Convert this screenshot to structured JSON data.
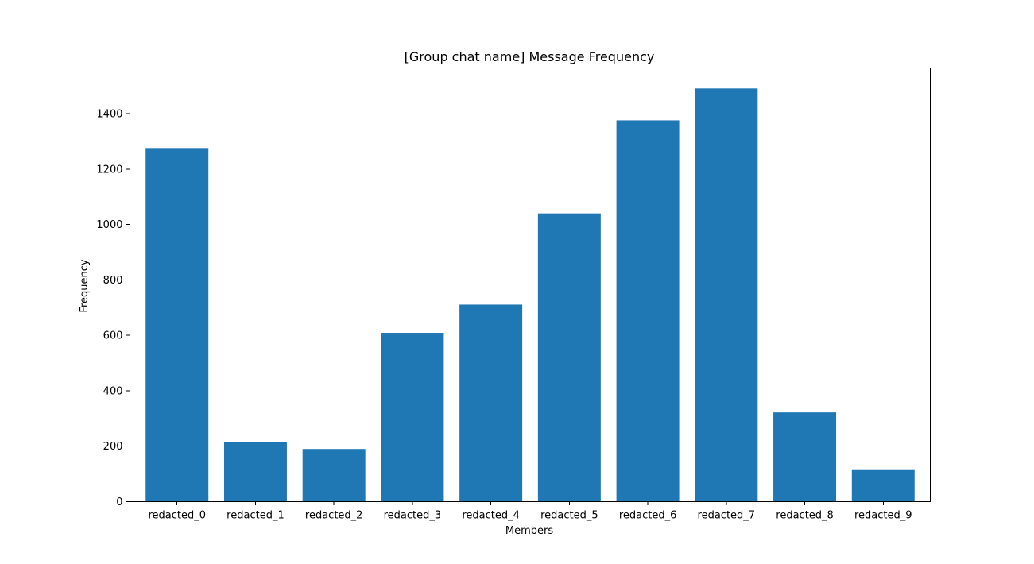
{
  "chart_data": {
    "type": "bar",
    "title": "[Group chat name] Message Frequency",
    "xlabel": "Members",
    "ylabel": "Frequency",
    "categories": [
      "redacted_0",
      "redacted_1",
      "redacted_2",
      "redacted_3",
      "redacted_4",
      "redacted_5",
      "redacted_6",
      "redacted_7",
      "redacted_8",
      "redacted_9"
    ],
    "values": [
      1276,
      216,
      190,
      609,
      711,
      1040,
      1376,
      1491,
      322,
      114
    ],
    "ylim": [
      0,
      1565
    ],
    "yticks": [
      0,
      200,
      400,
      600,
      800,
      1000,
      1200,
      1400
    ],
    "bar_color": "#1f77b4",
    "grid": false,
    "legend": "none"
  }
}
